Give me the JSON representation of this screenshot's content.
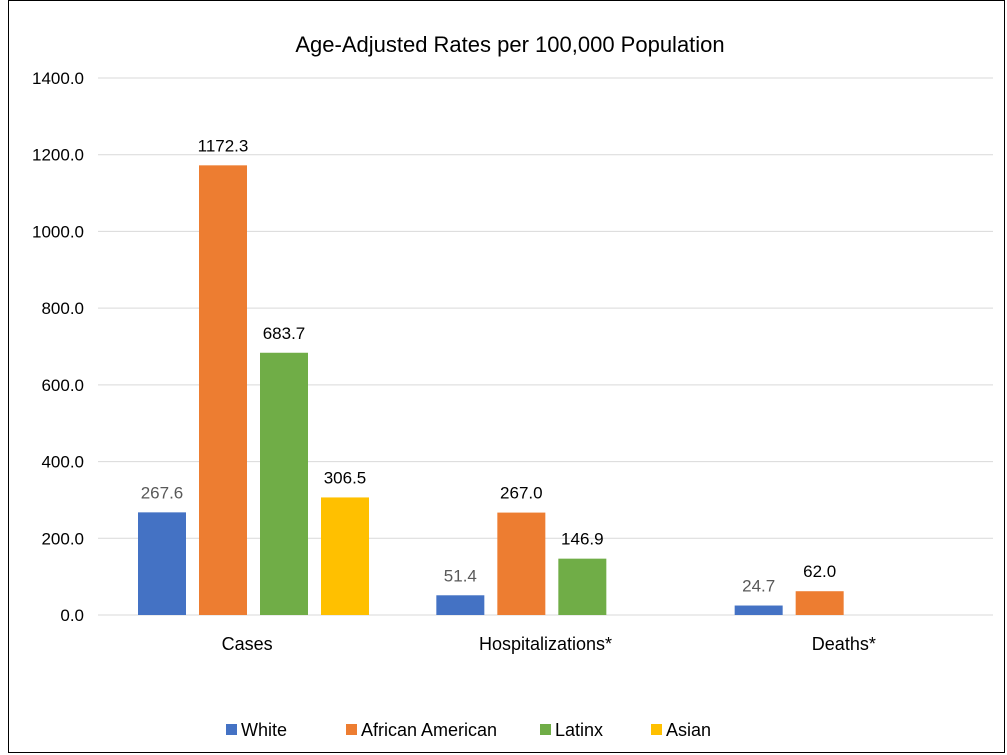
{
  "chart_data": {
    "type": "bar",
    "title": "Age-Adjusted Rates per 100,000 Population",
    "categories": [
      "Cases",
      "Hospitalizations*",
      "Deaths*"
    ],
    "series": [
      {
        "name": "White",
        "color": "#4472C4",
        "values": [
          267.6,
          51.4,
          24.7
        ],
        "labels": [
          "267.6",
          "51.4",
          "24.7"
        ]
      },
      {
        "name": "African American",
        "color": "#ED7D31",
        "values": [
          1172.3,
          267.0,
          62.0
        ],
        "labels": [
          "1172.3",
          "267.0",
          "62.0"
        ]
      },
      {
        "name": "Latinx",
        "color": "#70AD47",
        "values": [
          683.7,
          146.9,
          null
        ],
        "labels": [
          "683.7",
          "146.9",
          ""
        ]
      },
      {
        "name": "Asian",
        "color": "#FFC000",
        "values": [
          306.5,
          null,
          null
        ],
        "labels": [
          "306.5",
          "",
          ""
        ]
      }
    ],
    "ylim": [
      0,
      1400
    ],
    "yticks": [
      "0.0",
      "200.0",
      "400.0",
      "600.0",
      "800.0",
      "1000.0",
      "1200.0",
      "1400.0"
    ],
    "grid": true,
    "legend_position": "bottom"
  }
}
